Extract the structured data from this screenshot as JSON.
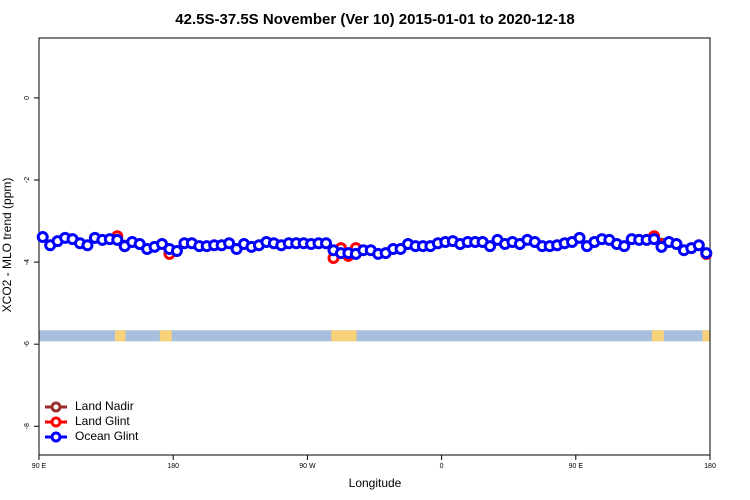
{
  "chart_data": {
    "type": "line",
    "title": "42.5S-37.5S November (Ver 10)   2015-01-01 to 2020-12-18",
    "x_label": "Longitude",
    "y_label": "XCO2 - MLO trend (ppm)",
    "xlim": [
      90,
      540
    ],
    "ylim": [
      -8.7,
      1.46
    ],
    "xticks": [
      {
        "value": 90,
        "label": "90 E"
      },
      180,
      {
        "value": 270,
        "label": "90 W"
      },
      {
        "value": 360,
        "label": "0"
      },
      {
        "value": 450,
        "label": "90 E"
      },
      {
        "value": 540,
        "label": "180"
      }
    ],
    "yticks": [
      0,
      -2,
      -4,
      -6,
      -8
    ],
    "legend": "bottom-left",
    "surface_mask": {
      "ylim": [
        -5.93,
        -5.66
      ],
      "ocean_color": "#a7bfdd",
      "land_color": "#f7d27a",
      "land_ranges": [
        [
          141,
          148
        ],
        [
          171,
          179
        ],
        [
          286,
          303
        ],
        [
          501,
          509
        ],
        [
          535,
          540
        ]
      ]
    },
    "series": [
      {
        "name": "Land Nadir",
        "color": "#9b2d2d",
        "x": [
          147.5,
          177.5,
          292.5,
          507.5
        ],
        "values": [
          -3.6,
          -3.7,
          -3.75,
          -3.55
        ]
      },
      {
        "name": "Land Glint",
        "color": "#ff0000",
        "x": [
          142.5,
          147.5,
          177.5,
          287.5,
          292.5,
          297.5,
          302.5,
          502.5,
          507.5,
          537.5
        ],
        "values": [
          -3.37,
          -3.61,
          -3.8,
          -3.9,
          -3.66,
          -3.85,
          -3.66,
          -3.37,
          -3.59,
          -3.8
        ]
      },
      {
        "name": "Ocean Glint",
        "color": "#0000ff",
        "x": [
          92.5,
          97.5,
          102.5,
          107.5,
          112.5,
          117.5,
          122.5,
          127.5,
          132.5,
          137.5,
          142.5,
          147.5,
          152.5,
          157.5,
          162.5,
          167.5,
          172.5,
          177.5,
          182.5,
          187.5,
          192.5,
          197.5,
          202.5,
          207.5,
          212.5,
          217.5,
          222.5,
          227.5,
          232.5,
          237.5,
          242.5,
          247.5,
          252.5,
          257.5,
          262.5,
          267.5,
          272.5,
          277.5,
          282.5,
          287.5,
          292.5,
          297.5,
          302.5,
          307.5,
          312.5,
          317.5,
          322.5,
          327.5,
          332.5,
          337.5,
          342.5,
          347.5,
          352.5,
          357.5,
          362.5,
          367.5,
          372.5,
          377.5,
          382.5,
          387.5,
          392.5,
          397.5,
          402.5,
          407.5,
          412.5,
          417.5,
          422.5,
          427.5,
          432.5,
          437.5,
          442.5,
          447.5,
          452.5,
          457.5,
          462.5,
          467.5,
          472.5,
          477.5,
          482.5,
          487.5,
          492.5,
          497.5,
          502.5,
          507.5,
          512.5,
          517.5,
          522.5,
          527.5,
          532.5,
          537.5
        ],
        "values": [
          -3.39,
          -3.59,
          -3.49,
          -3.41,
          -3.44,
          -3.54,
          -3.59,
          -3.41,
          -3.46,
          -3.44,
          -3.46,
          -3.61,
          -3.51,
          -3.56,
          -3.68,
          -3.63,
          -3.56,
          -3.68,
          -3.73,
          -3.54,
          -3.54,
          -3.61,
          -3.61,
          -3.59,
          -3.59,
          -3.54,
          -3.68,
          -3.56,
          -3.63,
          -3.59,
          -3.51,
          -3.54,
          -3.59,
          -3.54,
          -3.54,
          -3.54,
          -3.56,
          -3.54,
          -3.54,
          -3.71,
          -3.78,
          -3.78,
          -3.8,
          -3.71,
          -3.71,
          -3.8,
          -3.78,
          -3.68,
          -3.68,
          -3.56,
          -3.61,
          -3.61,
          -3.61,
          -3.54,
          -3.51,
          -3.49,
          -3.56,
          -3.51,
          -3.51,
          -3.51,
          -3.61,
          -3.46,
          -3.56,
          -3.51,
          -3.56,
          -3.46,
          -3.51,
          -3.61,
          -3.61,
          -3.59,
          -3.54,
          -3.51,
          -3.41,
          -3.61,
          -3.51,
          -3.44,
          -3.46,
          -3.56,
          -3.61,
          -3.44,
          -3.46,
          -3.46,
          -3.44,
          -3.63,
          -3.51,
          -3.56,
          -3.71,
          -3.66,
          -3.59,
          -3.78
        ]
      }
    ]
  }
}
